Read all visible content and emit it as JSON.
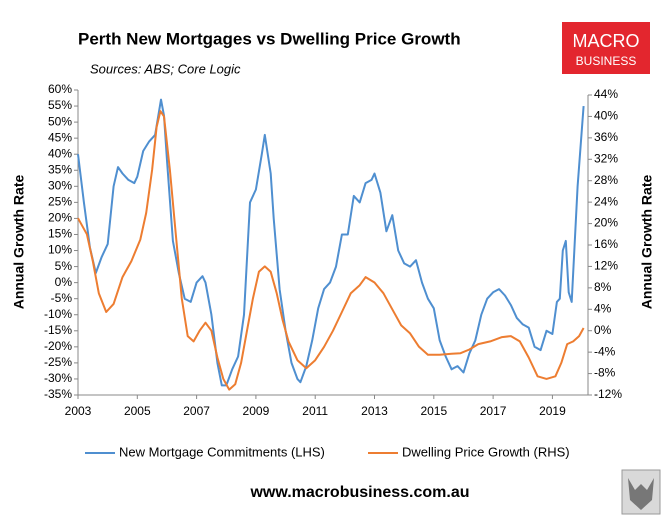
{
  "chart_data": {
    "type": "line",
    "title": "Perth New Mortgages vs Dwelling Price Growth",
    "subtitle": "Sources: ABS; Core Logic",
    "ylabel": "Annual Growth Rate",
    "y2label": "Annual Growth Rate",
    "xlim": [
      2003,
      2020.2
    ],
    "xticks": [
      2003,
      2005,
      2007,
      2009,
      2011,
      2013,
      2015,
      2017,
      2019
    ],
    "ylim": [
      -35,
      60
    ],
    "yticks": [
      {
        "value": -35,
        "label": "-35%"
      },
      {
        "value": -30,
        "label": "-30%"
      },
      {
        "value": -25,
        "label": "-25%"
      },
      {
        "value": -20,
        "label": "-20%"
      },
      {
        "value": -15,
        "label": "-15%"
      },
      {
        "value": -10,
        "label": "-10%"
      },
      {
        "value": -5,
        "label": "-5%"
      },
      {
        "value": 0,
        "label": "0%"
      },
      {
        "value": 5,
        "label": "5%"
      },
      {
        "value": 10,
        "label": "10%"
      },
      {
        "value": 15,
        "label": "15%"
      },
      {
        "value": 20,
        "label": "20%"
      },
      {
        "value": 25,
        "label": "25%"
      },
      {
        "value": 30,
        "label": "30%"
      },
      {
        "value": 35,
        "label": "35%"
      },
      {
        "value": 40,
        "label": "40%"
      },
      {
        "value": 45,
        "label": "45%"
      },
      {
        "value": 50,
        "label": "50%"
      },
      {
        "value": 55,
        "label": "55%"
      },
      {
        "value": 60,
        "label": "60%"
      }
    ],
    "y2lim": [
      -12,
      44
    ],
    "y2ticks": [
      {
        "value": -12,
        "label": "-12%"
      },
      {
        "value": -8,
        "label": "-8%"
      },
      {
        "value": -4,
        "label": "-4%"
      },
      {
        "value": 0,
        "label": "0%"
      },
      {
        "value": 4,
        "label": "4%"
      },
      {
        "value": 8,
        "label": "8%"
      },
      {
        "value": 12,
        "label": "12%"
      },
      {
        "value": 16,
        "label": "16%"
      },
      {
        "value": 20,
        "label": "20%"
      },
      {
        "value": 24,
        "label": "24%"
      },
      {
        "value": 28,
        "label": "28%"
      },
      {
        "value": 32,
        "label": "32%"
      },
      {
        "value": 36,
        "label": "36%"
      },
      {
        "value": 40,
        "label": "40%"
      },
      {
        "value": 44,
        "label": "44%"
      }
    ],
    "legend": "bottom",
    "series": [
      {
        "name": "New Mortgage Commitments (LHS)",
        "color": "#4f8fd0",
        "x": [
          2003.0,
          2003.2,
          2003.4,
          2003.6,
          2003.8,
          2004.0,
          2004.2,
          2004.35,
          2004.5,
          2004.7,
          2004.9,
          2005.0,
          2005.2,
          2005.4,
          2005.6,
          2005.8,
          2005.9,
          2006.0,
          2006.2,
          2006.4,
          2006.6,
          2006.8,
          2007.0,
          2007.2,
          2007.3,
          2007.5,
          2007.7,
          2007.85,
          2008.0,
          2008.2,
          2008.4,
          2008.6,
          2008.8,
          2009.0,
          2009.2,
          2009.3,
          2009.5,
          2009.6,
          2009.8,
          2010.0,
          2010.2,
          2010.4,
          2010.5,
          2010.7,
          2010.9,
          2011.1,
          2011.3,
          2011.5,
          2011.7,
          2011.9,
          2012.1,
          2012.3,
          2012.5,
          2012.7,
          2012.9,
          2013.0,
          2013.2,
          2013.4,
          2013.6,
          2013.8,
          2014.0,
          2014.2,
          2014.4,
          2014.6,
          2014.8,
          2015.0,
          2015.2,
          2015.4,
          2015.6,
          2015.8,
          2016.0,
          2016.2,
          2016.4,
          2016.6,
          2016.8,
          2017.0,
          2017.2,
          2017.4,
          2017.6,
          2017.8,
          2018.0,
          2018.2,
          2018.4,
          2018.6,
          2018.8,
          2019.0,
          2019.15,
          2019.25,
          2019.35,
          2019.45,
          2019.55,
          2019.65,
          2019.85,
          2020.05
        ],
        "values": [
          40,
          25,
          11,
          3,
          8,
          12,
          30,
          36,
          34,
          32,
          31,
          33,
          41,
          44,
          46,
          57,
          52,
          38,
          13,
          3,
          -5,
          -6,
          0,
          2,
          0,
          -10,
          -25,
          -32,
          -32,
          -27,
          -23,
          -10,
          25,
          29,
          40,
          46,
          34,
          20,
          -2,
          -15,
          -25,
          -30,
          -31,
          -26,
          -18,
          -8,
          -2,
          0,
          5,
          15,
          15,
          27,
          25,
          31,
          32,
          34,
          28,
          16,
          21,
          10,
          6,
          5,
          7,
          0,
          -5,
          -8,
          -18,
          -23,
          -27,
          -26,
          -28,
          -22,
          -18,
          -10,
          -5,
          -3,
          -2,
          -4,
          -7,
          -11,
          -13,
          -14,
          -20,
          -21,
          -15,
          -16,
          -6,
          -5,
          10,
          13,
          -3,
          -6,
          30,
          55
        ]
      },
      {
        "name": "Dwelling Price Growth (RHS)",
        "color": "#ed7d31",
        "axis": "y2",
        "x": [
          2003.0,
          2003.3,
          2003.5,
          2003.7,
          2003.95,
          2004.2,
          2004.5,
          2004.8,
          2005.1,
          2005.3,
          2005.5,
          2005.65,
          2005.78,
          2005.9,
          2006.1,
          2006.3,
          2006.5,
          2006.7,
          2006.9,
          2007.1,
          2007.3,
          2007.5,
          2007.7,
          2007.9,
          2008.1,
          2008.3,
          2008.5,
          2008.7,
          2008.9,
          2009.1,
          2009.3,
          2009.5,
          2009.7,
          2009.9,
          2010.1,
          2010.4,
          2010.7,
          2011.0,
          2011.3,
          2011.6,
          2011.9,
          2012.2,
          2012.5,
          2012.7,
          2013.0,
          2013.3,
          2013.6,
          2013.9,
          2014.2,
          2014.5,
          2014.8,
          2015.2,
          2015.6,
          2015.9,
          2016.2,
          2016.5,
          2016.9,
          2017.3,
          2017.6,
          2017.9,
          2018.2,
          2018.5,
          2018.8,
          2019.1,
          2019.3,
          2019.5,
          2019.7,
          2019.9,
          2020.05
        ],
        "values": [
          21,
          18,
          13,
          7,
          3.5,
          5,
          10,
          13,
          17,
          22,
          30,
          38,
          41,
          40,
          30,
          18,
          6,
          -1,
          -2,
          0,
          1.5,
          0,
          -5,
          -9,
          -11,
          -10,
          -6,
          0,
          6,
          11,
          12,
          11,
          7,
          2,
          -2,
          -5.5,
          -7,
          -5.5,
          -3,
          0,
          3.5,
          7,
          8.5,
          10,
          9,
          7,
          4,
          1,
          -0.5,
          -3,
          -4.5,
          -4.5,
          -4.3,
          -4.2,
          -3.5,
          -2.5,
          -2,
          -1.2,
          -1,
          -2,
          -5,
          -8.5,
          -9,
          -8.5,
          -6,
          -2.5,
          -2,
          -1,
          0.5
        ]
      }
    ]
  },
  "logo": {
    "line1": "MACRO",
    "line2": "BUSINESS"
  },
  "footer": "www.macrobusiness.com.au"
}
